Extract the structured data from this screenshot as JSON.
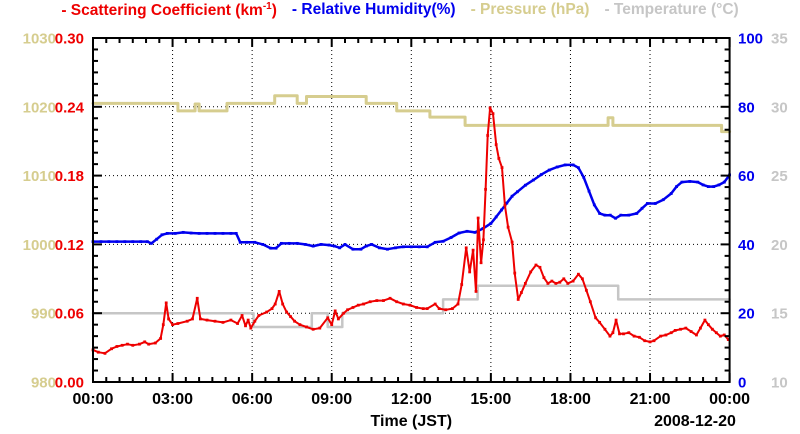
{
  "legend": {
    "scattering": {
      "pre": "- Scattering Coefficient (km",
      "sup": "-1",
      "post": ")"
    },
    "humidity": "- Relative Humidity(%)",
    "pressure": "- Pressure (hPa)",
    "temperature": "- Temperature (°C)"
  },
  "colors": {
    "scattering": "#ee0000",
    "humidity": "#0000ee",
    "pressure": "#d6cd8f",
    "temperature": "#c6c6c6",
    "axis": "#000000",
    "background": "#ffffff"
  },
  "chart_data": {
    "type": "line",
    "x": {
      "label": "Time (JST)",
      "date_label": "2008-12-20",
      "range": [
        0,
        24
      ],
      "tick_values": [
        0,
        3,
        6,
        9,
        12,
        15,
        18,
        21,
        24
      ],
      "tick_labels": [
        "00:00",
        "03:00",
        "06:00",
        "09:00",
        "12:00",
        "15:00",
        "18:00",
        "21:00",
        "00:00"
      ],
      "minor_step": 0.5
    },
    "axes": {
      "scattering": {
        "name": "Scattering Coefficient (km-1)",
        "side": "left-inner",
        "color": "#ee0000",
        "range": [
          0,
          0.3
        ],
        "tick_values": [
          0,
          0.06,
          0.12,
          0.18,
          0.24,
          0.3
        ],
        "tick_labels": [
          "0.00",
          "0.06",
          "0.12",
          "0.18",
          "0.24",
          "0.30"
        ],
        "minor_step": 0.01
      },
      "pressure": {
        "name": "Pressure (hPa)",
        "side": "left-outer",
        "color": "#d6cd8f",
        "range": [
          980,
          1030
        ],
        "tick_values": [
          980,
          990,
          1000,
          1010,
          1020,
          1030
        ],
        "tick_labels": [
          "980",
          "990",
          "1000",
          "1010",
          "1020",
          "1030"
        ]
      },
      "humidity": {
        "name": "Relative Humidity (%)",
        "side": "right-inner",
        "color": "#0000ee",
        "range": [
          0,
          100
        ],
        "tick_values": [
          0,
          20,
          40,
          60,
          80,
          100
        ],
        "tick_labels": [
          "0",
          "20",
          "40",
          "60",
          "80",
          "100"
        ]
      },
      "temperature": {
        "name": "Temperature (C)",
        "side": "right-outer",
        "color": "#c6c6c6",
        "range": [
          10,
          35
        ],
        "tick_values": [
          10,
          15,
          20,
          25,
          30,
          35
        ],
        "tick_labels": [
          "10",
          "15",
          "20",
          "25",
          "30",
          "35"
        ]
      }
    },
    "series": [
      {
        "name": "Pressure (hPa)",
        "axis": "pressure",
        "style": "step",
        "markers": false,
        "color": "#d6cd8f",
        "data": [
          [
            0,
            1020.5
          ],
          [
            3.2,
            1019.4
          ],
          [
            3.85,
            1020.4
          ],
          [
            4,
            1019.4
          ],
          [
            5.05,
            1020.5
          ],
          [
            6.85,
            1021.6
          ],
          [
            7.7,
            1020.5
          ],
          [
            8.05,
            1021.5
          ],
          [
            10.3,
            1020.5
          ],
          [
            11.45,
            1019.4
          ],
          [
            12.7,
            1018.5
          ],
          [
            14.03,
            1017.3
          ],
          [
            19.42,
            1018.4
          ],
          [
            19.6,
            1017.3
          ],
          [
            23.7,
            1016.4
          ],
          [
            24,
            1016.4
          ]
        ]
      },
      {
        "name": "Temperature (C)",
        "axis": "temperature",
        "style": "step",
        "markers": false,
        "color": "#c6c6c6",
        "data": [
          [
            0,
            15
          ],
          [
            6.05,
            14
          ],
          [
            8.25,
            15
          ],
          [
            8.85,
            14
          ],
          [
            9.4,
            15
          ],
          [
            13.2,
            16
          ],
          [
            14.5,
            17
          ],
          [
            19.8,
            16
          ],
          [
            24,
            16
          ]
        ]
      },
      {
        "name": "Relative Humidity (%)",
        "axis": "humidity",
        "style": "line",
        "markers": true,
        "color": "#0000ee",
        "data": [
          [
            0,
            40.8
          ],
          [
            0.3,
            40.8
          ],
          [
            0.6,
            40.8
          ],
          [
            0.9,
            40.8
          ],
          [
            1.2,
            40.8
          ],
          [
            1.5,
            40.8
          ],
          [
            1.8,
            40.8
          ],
          [
            2.05,
            40.8
          ],
          [
            2.2,
            40.3
          ],
          [
            2.4,
            41.5
          ],
          [
            2.6,
            42.8
          ],
          [
            2.8,
            43.2
          ],
          [
            3.1,
            43.2
          ],
          [
            3.4,
            43.5
          ],
          [
            3.7,
            43.3
          ],
          [
            4,
            43.2
          ],
          [
            4.3,
            43.2
          ],
          [
            4.6,
            43.2
          ],
          [
            4.9,
            43.2
          ],
          [
            5.2,
            43.2
          ],
          [
            5.4,
            43.2
          ],
          [
            5.55,
            40.6
          ],
          [
            5.8,
            40.6
          ],
          [
            6.1,
            40.6
          ],
          [
            6.4,
            40
          ],
          [
            6.7,
            38.9
          ],
          [
            6.9,
            38.9
          ],
          [
            7.1,
            40.3
          ],
          [
            7.4,
            40.3
          ],
          [
            7.7,
            40.3
          ],
          [
            8,
            40
          ],
          [
            8.3,
            39.5
          ],
          [
            8.6,
            40
          ],
          [
            8.9,
            39.8
          ],
          [
            9.1,
            39.5
          ],
          [
            9.3,
            39
          ],
          [
            9.5,
            40
          ],
          [
            9.8,
            38.6
          ],
          [
            10.1,
            38.6
          ],
          [
            10.3,
            39.5
          ],
          [
            10.5,
            40
          ],
          [
            10.8,
            39
          ],
          [
            11.1,
            38.6
          ],
          [
            11.4,
            39
          ],
          [
            11.7,
            39.3
          ],
          [
            12,
            39.3
          ],
          [
            12.3,
            39.3
          ],
          [
            12.6,
            39.3
          ],
          [
            12.9,
            40.6
          ],
          [
            13.2,
            40.9
          ],
          [
            13.5,
            42
          ],
          [
            13.8,
            43.3
          ],
          [
            14.1,
            43.8
          ],
          [
            14.4,
            43.5
          ],
          [
            14.7,
            44.6
          ],
          [
            15,
            46.1
          ],
          [
            15.2,
            48
          ],
          [
            15.4,
            50
          ],
          [
            15.6,
            52
          ],
          [
            15.8,
            54
          ],
          [
            16,
            55.3
          ],
          [
            16.3,
            57.2
          ],
          [
            16.6,
            58.7
          ],
          [
            16.9,
            60.3
          ],
          [
            17.2,
            61.6
          ],
          [
            17.5,
            62.5
          ],
          [
            17.8,
            63.1
          ],
          [
            18.1,
            63.1
          ],
          [
            18.3,
            62.3
          ],
          [
            18.5,
            59.5
          ],
          [
            18.7,
            55.5
          ],
          [
            18.9,
            51.5
          ],
          [
            19.1,
            49
          ],
          [
            19.3,
            48.5
          ],
          [
            19.5,
            48.5
          ],
          [
            19.7,
            47.6
          ],
          [
            19.9,
            48.5
          ],
          [
            20.2,
            48.5
          ],
          [
            20.5,
            49
          ],
          [
            20.7,
            50.5
          ],
          [
            20.9,
            51.9
          ],
          [
            21.2,
            51.9
          ],
          [
            21.5,
            53
          ],
          [
            21.8,
            54.8
          ],
          [
            22,
            56.8
          ],
          [
            22.2,
            58.1
          ],
          [
            22.5,
            58.3
          ],
          [
            22.8,
            58.1
          ],
          [
            23,
            57.3
          ],
          [
            23.2,
            56.8
          ],
          [
            23.4,
            56.8
          ],
          [
            23.6,
            57.3
          ],
          [
            23.8,
            58.1
          ],
          [
            24,
            60.2
          ]
        ]
      },
      {
        "name": "Scattering Coefficient (km-1)",
        "axis": "scattering",
        "style": "line",
        "markers": true,
        "color": "#ee0000",
        "data": [
          [
            0,
            0.028
          ],
          [
            0.2,
            0.026
          ],
          [
            0.45,
            0.025
          ],
          [
            0.7,
            0.029
          ],
          [
            0.9,
            0.031
          ],
          [
            1.1,
            0.032
          ],
          [
            1.3,
            0.033
          ],
          [
            1.5,
            0.032
          ],
          [
            1.75,
            0.033
          ],
          [
            1.95,
            0.035
          ],
          [
            2.1,
            0.033
          ],
          [
            2.35,
            0.034
          ],
          [
            2.55,
            0.038
          ],
          [
            2.65,
            0.05
          ],
          [
            2.76,
            0.069
          ],
          [
            2.85,
            0.055
          ],
          [
            3,
            0.05
          ],
          [
            3.2,
            0.051
          ],
          [
            3.55,
            0.053
          ],
          [
            3.75,
            0.055
          ],
          [
            3.93,
            0.073
          ],
          [
            4.05,
            0.055
          ],
          [
            4.3,
            0.054
          ],
          [
            4.6,
            0.053
          ],
          [
            4.9,
            0.052
          ],
          [
            5.2,
            0.054
          ],
          [
            5.45,
            0.051
          ],
          [
            5.62,
            0.058
          ],
          [
            5.75,
            0.049
          ],
          [
            5.85,
            0.054
          ],
          [
            5.95,
            0.047
          ],
          [
            6.1,
            0.053
          ],
          [
            6.25,
            0.058
          ],
          [
            6.55,
            0.061
          ],
          [
            6.75,
            0.064
          ],
          [
            6.87,
            0.068
          ],
          [
            7.02,
            0.079
          ],
          [
            7.15,
            0.068
          ],
          [
            7.3,
            0.061
          ],
          [
            7.45,
            0.057
          ],
          [
            7.6,
            0.053
          ],
          [
            7.8,
            0.05
          ],
          [
            8.05,
            0.048
          ],
          [
            8.3,
            0.046
          ],
          [
            8.55,
            0.047
          ],
          [
            8.85,
            0.056
          ],
          [
            9,
            0.05
          ],
          [
            9.13,
            0.062
          ],
          [
            9.25,
            0.055
          ],
          [
            9.45,
            0.06
          ],
          [
            9.6,
            0.063
          ],
          [
            9.8,
            0.065
          ],
          [
            10,
            0.067
          ],
          [
            10.2,
            0.068
          ],
          [
            10.45,
            0.07
          ],
          [
            10.7,
            0.071
          ],
          [
            10.95,
            0.071
          ],
          [
            11.2,
            0.073
          ],
          [
            11.45,
            0.07
          ],
          [
            11.7,
            0.068
          ],
          [
            11.95,
            0.067
          ],
          [
            12.2,
            0.065
          ],
          [
            12.45,
            0.064
          ],
          [
            12.6,
            0.064
          ],
          [
            12.9,
            0.068
          ],
          [
            13.05,
            0.064
          ],
          [
            13.3,
            0.063
          ],
          [
            13.55,
            0.064
          ],
          [
            13.76,
            0.068
          ],
          [
            13.9,
            0.085
          ],
          [
            14.07,
            0.117
          ],
          [
            14.2,
            0.096
          ],
          [
            14.33,
            0.115
          ],
          [
            14.44,
            0.079
          ],
          [
            14.52,
            0.143
          ],
          [
            14.63,
            0.104
          ],
          [
            14.72,
            0.124
          ],
          [
            14.8,
            0.168
          ],
          [
            14.88,
            0.215
          ],
          [
            14.97,
            0.239
          ],
          [
            15.08,
            0.234
          ],
          [
            15.2,
            0.207
          ],
          [
            15.3,
            0.195
          ],
          [
            15.42,
            0.187
          ],
          [
            15.53,
            0.154
          ],
          [
            15.65,
            0.135
          ],
          [
            15.8,
            0.122
          ],
          [
            15.9,
            0.095
          ],
          [
            16.03,
            0.072
          ],
          [
            16.15,
            0.078
          ],
          [
            16.3,
            0.086
          ],
          [
            16.5,
            0.096
          ],
          [
            16.7,
            0.102
          ],
          [
            16.85,
            0.1
          ],
          [
            17,
            0.091
          ],
          [
            17.15,
            0.086
          ],
          [
            17.3,
            0.088
          ],
          [
            17.45,
            0.086
          ],
          [
            17.6,
            0.087
          ],
          [
            17.75,
            0.09
          ],
          [
            17.9,
            0.086
          ],
          [
            18.1,
            0.088
          ],
          [
            18.3,
            0.094
          ],
          [
            18.45,
            0.09
          ],
          [
            18.6,
            0.08
          ],
          [
            18.75,
            0.07
          ],
          [
            18.95,
            0.056
          ],
          [
            19.1,
            0.052
          ],
          [
            19.3,
            0.046
          ],
          [
            19.49,
            0.04
          ],
          [
            19.6,
            0.043
          ],
          [
            19.72,
            0.054
          ],
          [
            19.85,
            0.042
          ],
          [
            20,
            0.042
          ],
          [
            20.2,
            0.043
          ],
          [
            20.4,
            0.04
          ],
          [
            20.6,
            0.039
          ],
          [
            20.8,
            0.036
          ],
          [
            21,
            0.035
          ],
          [
            21.15,
            0.036
          ],
          [
            21.4,
            0.04
          ],
          [
            21.6,
            0.041
          ],
          [
            21.8,
            0.043
          ],
          [
            21.95,
            0.045
          ],
          [
            22.15,
            0.046
          ],
          [
            22.35,
            0.047
          ],
          [
            22.55,
            0.044
          ],
          [
            22.75,
            0.041
          ],
          [
            22.9,
            0.047
          ],
          [
            23.07,
            0.054
          ],
          [
            23.2,
            0.05
          ],
          [
            23.35,
            0.046
          ],
          [
            23.5,
            0.043
          ],
          [
            23.65,
            0.04
          ],
          [
            23.8,
            0.041
          ],
          [
            23.95,
            0.037
          ]
        ]
      }
    ],
    "grid": true,
    "legend_position": "top"
  }
}
